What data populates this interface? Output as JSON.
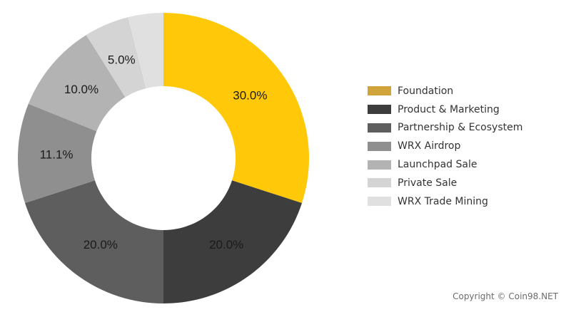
{
  "chart_data": {
    "type": "pie",
    "donut": true,
    "categories": [
      "Foundation",
      "Product & Marketing",
      "Partnership & Ecosystem",
      "WRX Airdrop",
      "Launchpad Sale",
      "Private Sale",
      "WRX Trade Mining"
    ],
    "values": [
      30.0,
      20.0,
      20.0,
      11.1,
      10.0,
      5.0,
      3.9
    ],
    "value_labels": [
      "30.0%",
      "20.0%",
      "20.0%",
      "11.1%",
      "10.0%",
      "5.0%",
      ""
    ],
    "slice_colors": [
      "#FFC90A",
      "#3D3D3D",
      "#5E5E5E",
      "#8F8F8F",
      "#B3B3B3",
      "#D4D4D4",
      "#E0E0E0"
    ],
    "legend_colors": [
      "#D1A33B",
      "#3D3D3D",
      "#5E5E5E",
      "#8F8F8F",
      "#B3B3B3",
      "#D4D4D4",
      "#E0E0E0"
    ],
    "legend_position": "right",
    "title": "",
    "start_angle_deg": 0,
    "direction": "clockwise"
  },
  "copyright": "Copyright © Coin98.NET"
}
